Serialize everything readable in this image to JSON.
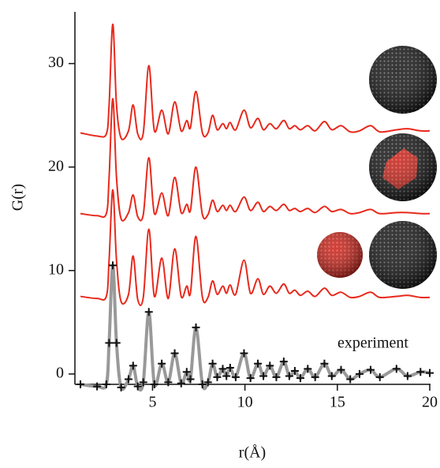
{
  "chart_data": {
    "type": "line",
    "xlabel": "r(Å)",
    "ylabel": "G(r)",
    "xlim": [
      0.8,
      20
    ],
    "ylim": [
      -1,
      35
    ],
    "xticks": [
      5,
      10,
      15,
      20
    ],
    "yticks": [
      0,
      10,
      20,
      30
    ],
    "annotation": "experiment",
    "x": [
      1.1,
      2.0,
      2.5,
      2.65,
      2.85,
      3.05,
      3.3,
      3.7,
      3.95,
      4.2,
      4.5,
      4.8,
      5.1,
      5.5,
      5.85,
      6.2,
      6.55,
      6.85,
      7.05,
      7.35,
      7.7,
      8.0,
      8.25,
      8.5,
      8.8,
      9.0,
      9.2,
      9.5,
      9.95,
      10.3,
      10.7,
      11.0,
      11.35,
      11.7,
      12.1,
      12.4,
      12.7,
      13.0,
      13.4,
      13.8,
      14.3,
      14.7,
      15.2,
      15.7,
      16.2,
      16.8,
      17.3,
      18.2,
      18.8,
      19.5,
      20.0
    ],
    "series": [
      {
        "color": "#e8291c",
        "values": [
          23.3,
          23.0,
          23.2,
          26,
          33.8,
          26,
          22.8,
          23.5,
          26.0,
          23.2,
          23.3,
          29.8,
          23.5,
          25.5,
          23.2,
          26.3,
          23.5,
          24.5,
          23.8,
          27.3,
          23.3,
          23.3,
          25.0,
          23.6,
          24.2,
          23.7,
          24.3,
          23.6,
          25.5,
          23.8,
          24.7,
          23.6,
          24.2,
          23.7,
          24.5,
          23.7,
          24.0,
          23.6,
          24.0,
          23.5,
          24.4,
          23.6,
          24.0,
          23.4,
          23.5,
          24.0,
          23.4,
          23.6,
          23.7,
          23.5,
          23.5
        ]
      },
      {
        "color": "#e8291c",
        "values": [
          15.5,
          15.3,
          15.5,
          19,
          26.6,
          19,
          15.0,
          15.6,
          17.3,
          15.2,
          15.4,
          20.9,
          15.5,
          17.5,
          15.3,
          19.0,
          15.6,
          16.4,
          15.8,
          20.0,
          15.4,
          15.4,
          16.8,
          15.7,
          16.3,
          15.8,
          16.3,
          15.7,
          17.1,
          15.8,
          16.6,
          15.7,
          16.2,
          15.8,
          16.4,
          15.8,
          16.0,
          15.7,
          16.0,
          15.6,
          16.2,
          15.7,
          15.9,
          15.5,
          15.6,
          15.9,
          15.5,
          15.6,
          15.6,
          15.5,
          15.5
        ]
      },
      {
        "color": "#e8291c",
        "values": [
          7.5,
          7.3,
          7.5,
          11,
          17.8,
          11,
          7.0,
          7.7,
          11.4,
          7.2,
          7.4,
          14.0,
          7.5,
          11.2,
          7.3,
          12.1,
          7.5,
          8.5,
          7.8,
          13.3,
          7.4,
          7.4,
          9.0,
          7.7,
          8.5,
          7.8,
          8.6,
          7.7,
          11.0,
          7.8,
          9.2,
          7.7,
          8.5,
          7.8,
          8.7,
          7.8,
          8.1,
          7.6,
          8.0,
          7.5,
          8.3,
          7.6,
          7.9,
          7.4,
          7.5,
          7.9,
          7.4,
          7.5,
          7.6,
          7.4,
          7.4
        ]
      },
      {
        "color": "#111111",
        "line_color": "#999999",
        "marker": "+",
        "values": [
          -1.0,
          -1.2,
          -1.0,
          3,
          10.5,
          3,
          -1.3,
          -0.5,
          0.8,
          -1.2,
          -0.8,
          6.0,
          -1.0,
          1.0,
          -0.8,
          2.0,
          -0.9,
          0.2,
          -0.5,
          4.5,
          -1.0,
          -0.8,
          1.0,
          -0.3,
          0.5,
          -0.2,
          0.6,
          -0.3,
          2.0,
          -0.4,
          1.0,
          -0.2,
          0.8,
          -0.3,
          1.2,
          -0.2,
          0.3,
          -0.4,
          0.5,
          -0.3,
          1.0,
          -0.2,
          0.4,
          -0.5,
          0.0,
          0.4,
          -0.3,
          0.5,
          -0.2,
          0.2,
          0.1
        ]
      }
    ]
  }
}
